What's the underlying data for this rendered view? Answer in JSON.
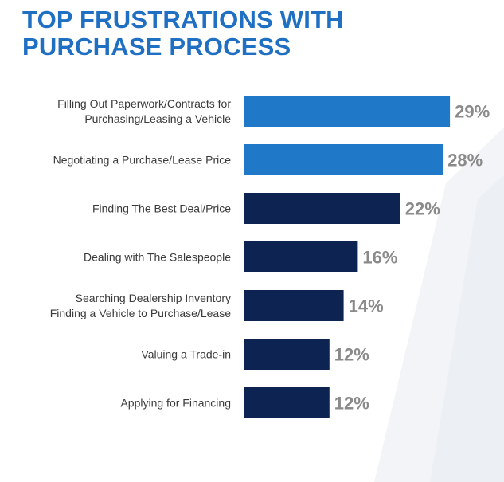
{
  "title_lines": [
    "TOP FRUSTRATIONS WITH",
    "PURCHASE PROCESS"
  ],
  "colors": {
    "title": "#1f6fc2",
    "highlight_bar": "#1f78c8",
    "bar": "#0d2452",
    "value_label": "#8a8a8a",
    "category_label": "#3a3a3a"
  },
  "chart_data": {
    "type": "bar",
    "orientation": "horizontal",
    "title": "TOP FRUSTRATIONS WITH PURCHASE PROCESS",
    "categories": [
      [
        "Filling Out Paperwork/Contracts for",
        "Purchasing/Leasing a Vehicle"
      ],
      [
        "Negotiating a Purchase/Lease Price"
      ],
      [
        "Finding The Best Deal/Price"
      ],
      [
        "Dealing with The Salespeople"
      ],
      [
        "Searching Dealership Inventory",
        "Finding a Vehicle to Purchase/Lease"
      ],
      [
        "Valuing a Trade-in"
      ],
      [
        "Applying for Financing"
      ]
    ],
    "values": [
      29,
      28,
      22,
      16,
      14,
      12,
      12
    ],
    "value_labels": [
      "29%",
      "28%",
      "22%",
      "16%",
      "14%",
      "12%",
      "12%"
    ],
    "highlighted": [
      true,
      true,
      false,
      false,
      false,
      false,
      false
    ],
    "xlim": [
      0,
      100
    ],
    "grid": false,
    "legend": "none"
  }
}
